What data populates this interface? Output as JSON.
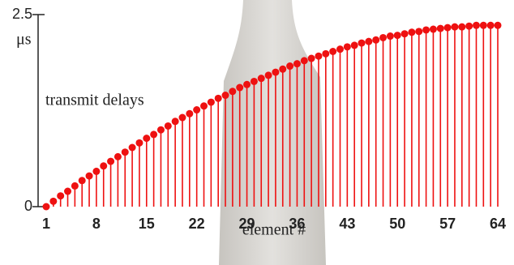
{
  "chart_data": {
    "type": "stem",
    "ylabel": "μs",
    "xlabel": "element #",
    "annotation": "transmit delays",
    "color": "#ee1111",
    "x": [
      1,
      2,
      3,
      4,
      5,
      6,
      7,
      8,
      9,
      10,
      11,
      12,
      13,
      14,
      15,
      16,
      17,
      18,
      19,
      20,
      21,
      22,
      23,
      24,
      25,
      26,
      27,
      28,
      29,
      30,
      31,
      32,
      33,
      34,
      35,
      36,
      37,
      38,
      39,
      40,
      41,
      42,
      43,
      44,
      45,
      46,
      47,
      48,
      49,
      50,
      51,
      52,
      53,
      54,
      55,
      56,
      57,
      58,
      59,
      60,
      61,
      62,
      63,
      64
    ],
    "values": [
      0,
      0.07,
      0.14,
      0.2,
      0.27,
      0.34,
      0.4,
      0.46,
      0.53,
      0.59,
      0.65,
      0.71,
      0.77,
      0.83,
      0.89,
      0.94,
      1.0,
      1.05,
      1.11,
      1.16,
      1.21,
      1.26,
      1.31,
      1.36,
      1.41,
      1.45,
      1.5,
      1.55,
      1.59,
      1.63,
      1.67,
      1.71,
      1.75,
      1.79,
      1.83,
      1.86,
      1.9,
      1.93,
      1.96,
      1.99,
      2.02,
      2.05,
      2.08,
      2.1,
      2.13,
      2.15,
      2.17,
      2.2,
      2.22,
      2.23,
      2.25,
      2.27,
      2.28,
      2.3,
      2.31,
      2.32,
      2.33,
      2.34,
      2.34,
      2.35,
      2.36,
      2.36,
      2.36,
      2.36
    ],
    "xlim": [
      1,
      64
    ],
    "xticks": [
      1,
      8,
      15,
      22,
      29,
      36,
      43,
      50,
      57,
      64
    ],
    "ylim": [
      0,
      2.5
    ],
    "yticks": [
      0,
      2.5
    ]
  }
}
